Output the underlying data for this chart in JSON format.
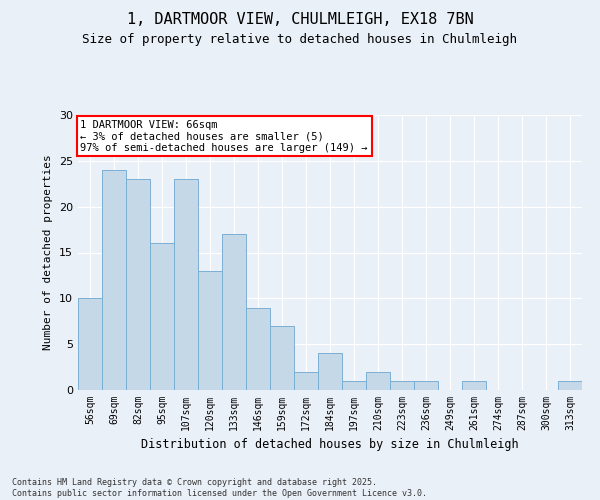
{
  "title": "1, DARTMOOR VIEW, CHULMLEIGH, EX18 7BN",
  "subtitle": "Size of property relative to detached houses in Chulmleigh",
  "xlabel": "Distribution of detached houses by size in Chulmleigh",
  "ylabel": "Number of detached properties",
  "categories": [
    "56sqm",
    "69sqm",
    "82sqm",
    "95sqm",
    "107sqm",
    "120sqm",
    "133sqm",
    "146sqm",
    "159sqm",
    "172sqm",
    "184sqm",
    "197sqm",
    "210sqm",
    "223sqm",
    "236sqm",
    "249sqm",
    "261sqm",
    "274sqm",
    "287sqm",
    "300sqm",
    "313sqm"
  ],
  "values": [
    10,
    24,
    23,
    16,
    23,
    13,
    17,
    9,
    7,
    2,
    4,
    1,
    2,
    1,
    1,
    0,
    1,
    0,
    0,
    0,
    1
  ],
  "bar_color": "#c5d8e8",
  "bar_edgecolor": "#7bafd4",
  "annotation_line1": "1 DARTMOOR VIEW: 66sqm",
  "annotation_line2": "← 3% of detached houses are smaller (5)",
  "annotation_line3": "97% of semi-detached houses are larger (149) →",
  "annotation_box_color": "white",
  "annotation_box_edgecolor": "red",
  "ylim": [
    0,
    30
  ],
  "yticks": [
    0,
    5,
    10,
    15,
    20,
    25,
    30
  ],
  "footnote": "Contains HM Land Registry data © Crown copyright and database right 2025.\nContains public sector information licensed under the Open Government Licence v3.0.",
  "background_color": "#eaf0f7",
  "plot_background_color": "#eaf0f7",
  "title_fontsize": 11,
  "subtitle_fontsize": 9,
  "tick_fontsize": 7,
  "ylabel_fontsize": 8,
  "xlabel_fontsize": 8.5,
  "footnote_fontsize": 6,
  "annotation_fontsize": 7.5
}
